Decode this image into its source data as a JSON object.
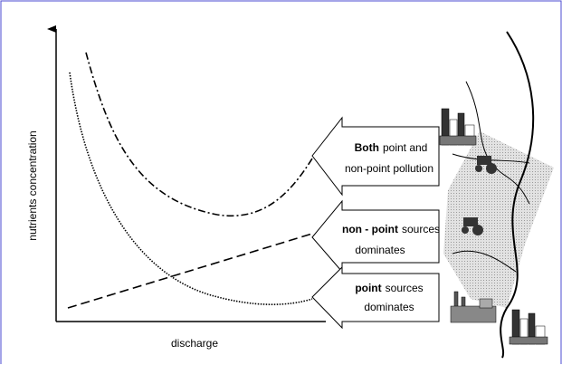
{
  "axes": {
    "y_label": "nutrients concentration",
    "x_label": "discharge"
  },
  "boxes": [
    {
      "bold": "Both",
      "rest": "point and",
      "line2": "non-point pollution"
    },
    {
      "bold": "non - point",
      "rest": "sources",
      "line2": "dominates"
    },
    {
      "bold": "point",
      "rest": "sources",
      "line2": "dominates"
    }
  ]
}
